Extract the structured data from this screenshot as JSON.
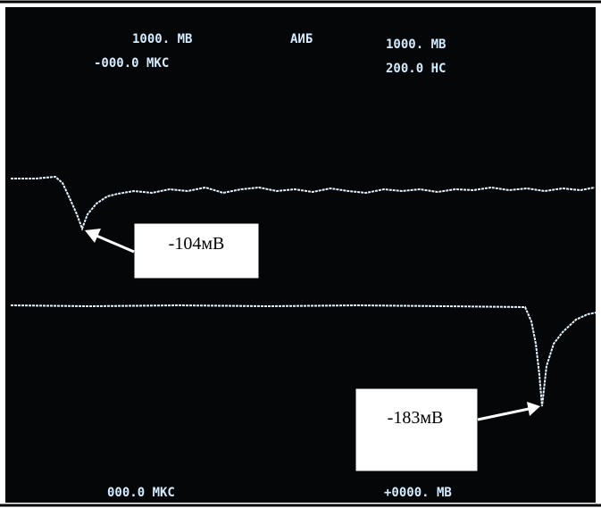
{
  "screen": {
    "top_left": {
      "line1": "1000. MB",
      "line2": "-000.0 MKC"
    },
    "top_center": "AИБ",
    "top_right": {
      "line1": "1000. MB",
      "line2": "200.0 HC"
    },
    "bottom_left": "000.0 MKC",
    "bottom_right": "+0000. MB"
  },
  "callouts": [
    {
      "label": "-104мВ"
    },
    {
      "label": "-183мВ"
    }
  ]
}
